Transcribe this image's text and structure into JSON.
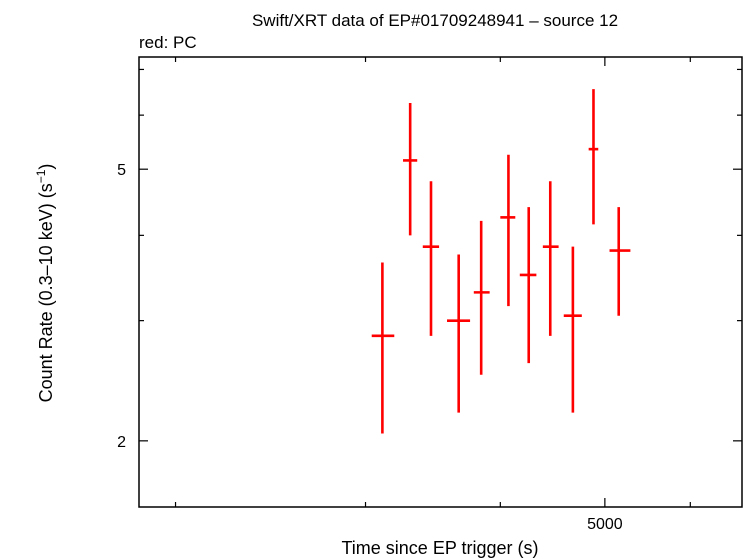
{
  "chart_data": {
    "type": "scatter",
    "title": "Swift/XRT data of EP#01709248941 – source 12",
    "subtitle": "red: PC",
    "xlabel": "Time since EP trigger (s)",
    "ylabel_main": "Count Rate (0.3–10 keV) (s",
    "ylabel_sup": "−1",
    "ylabel_end": ")",
    "x_scale": "log",
    "y_scale": "log",
    "xlim": [
      1850,
      6700
    ],
    "ylim": [
      1.6,
      7.3
    ],
    "x_tick_labels": [
      {
        "value": 5000,
        "label": "5000"
      }
    ],
    "x_minor_ticks": [
      2000,
      3000,
      4000,
      5000,
      6000
    ],
    "y_tick_labels": [
      {
        "value": 2,
        "label": "2"
      },
      {
        "value": 5,
        "label": "5"
      }
    ],
    "y_minor_ticks": [
      2,
      3,
      4,
      5,
      6,
      7
    ],
    "grid": false,
    "series": [
      {
        "color": "#ff0000",
        "points": [
          {
            "x": 3110,
            "xlo": 3040,
            "xhi": 3190,
            "y": 2.85,
            "ylo": 2.05,
            "yhi": 3.65
          },
          {
            "x": 3300,
            "xlo": 3250,
            "xhi": 3350,
            "y": 5.15,
            "ylo": 4.0,
            "yhi": 6.25
          },
          {
            "x": 3450,
            "xlo": 3390,
            "xhi": 3510,
            "y": 3.85,
            "ylo": 2.85,
            "yhi": 4.8
          },
          {
            "x": 3660,
            "xlo": 3570,
            "xhi": 3750,
            "y": 3.0,
            "ylo": 2.2,
            "yhi": 3.75
          },
          {
            "x": 3840,
            "xlo": 3780,
            "xhi": 3910,
            "y": 3.3,
            "ylo": 2.5,
            "yhi": 4.2
          },
          {
            "x": 4070,
            "xlo": 4000,
            "xhi": 4130,
            "y": 4.25,
            "ylo": 3.15,
            "yhi": 5.25
          },
          {
            "x": 4250,
            "xlo": 4170,
            "xhi": 4320,
            "y": 3.5,
            "ylo": 2.6,
            "yhi": 4.4
          },
          {
            "x": 4450,
            "xlo": 4380,
            "xhi": 4530,
            "y": 3.85,
            "ylo": 2.85,
            "yhi": 4.8
          },
          {
            "x": 4670,
            "xlo": 4580,
            "xhi": 4760,
            "y": 3.05,
            "ylo": 2.2,
            "yhi": 3.85
          },
          {
            "x": 4880,
            "xlo": 4830,
            "xhi": 4930,
            "y": 5.35,
            "ylo": 4.15,
            "yhi": 6.55
          },
          {
            "x": 5150,
            "xlo": 5050,
            "xhi": 5280,
            "y": 3.8,
            "ylo": 3.05,
            "yhi": 4.4
          }
        ]
      }
    ]
  }
}
